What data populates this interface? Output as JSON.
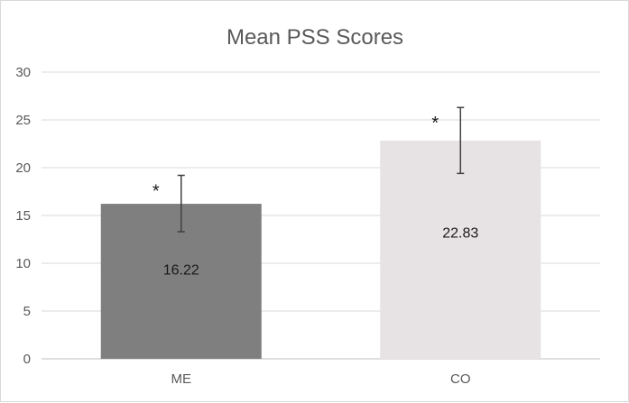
{
  "chart_data": {
    "type": "bar",
    "title": "Mean PSS Scores",
    "xlabel": "",
    "ylabel": "",
    "ylim": [
      0,
      30
    ],
    "yticks": [
      "0",
      "5",
      "10",
      "15",
      "20",
      "25",
      "30"
    ],
    "grid": true,
    "categories": [
      "ME",
      "CO"
    ],
    "values": [
      16.22,
      22.83
    ],
    "data_labels": [
      "16.22",
      "22.83"
    ],
    "error_bars": [
      {
        "low": 13.3,
        "high": 19.2
      },
      {
        "low": 19.4,
        "high": 26.3
      }
    ],
    "annotations": [
      "*",
      "*"
    ],
    "colors": [
      "#7f7f7f",
      "#e7e3e4"
    ]
  }
}
